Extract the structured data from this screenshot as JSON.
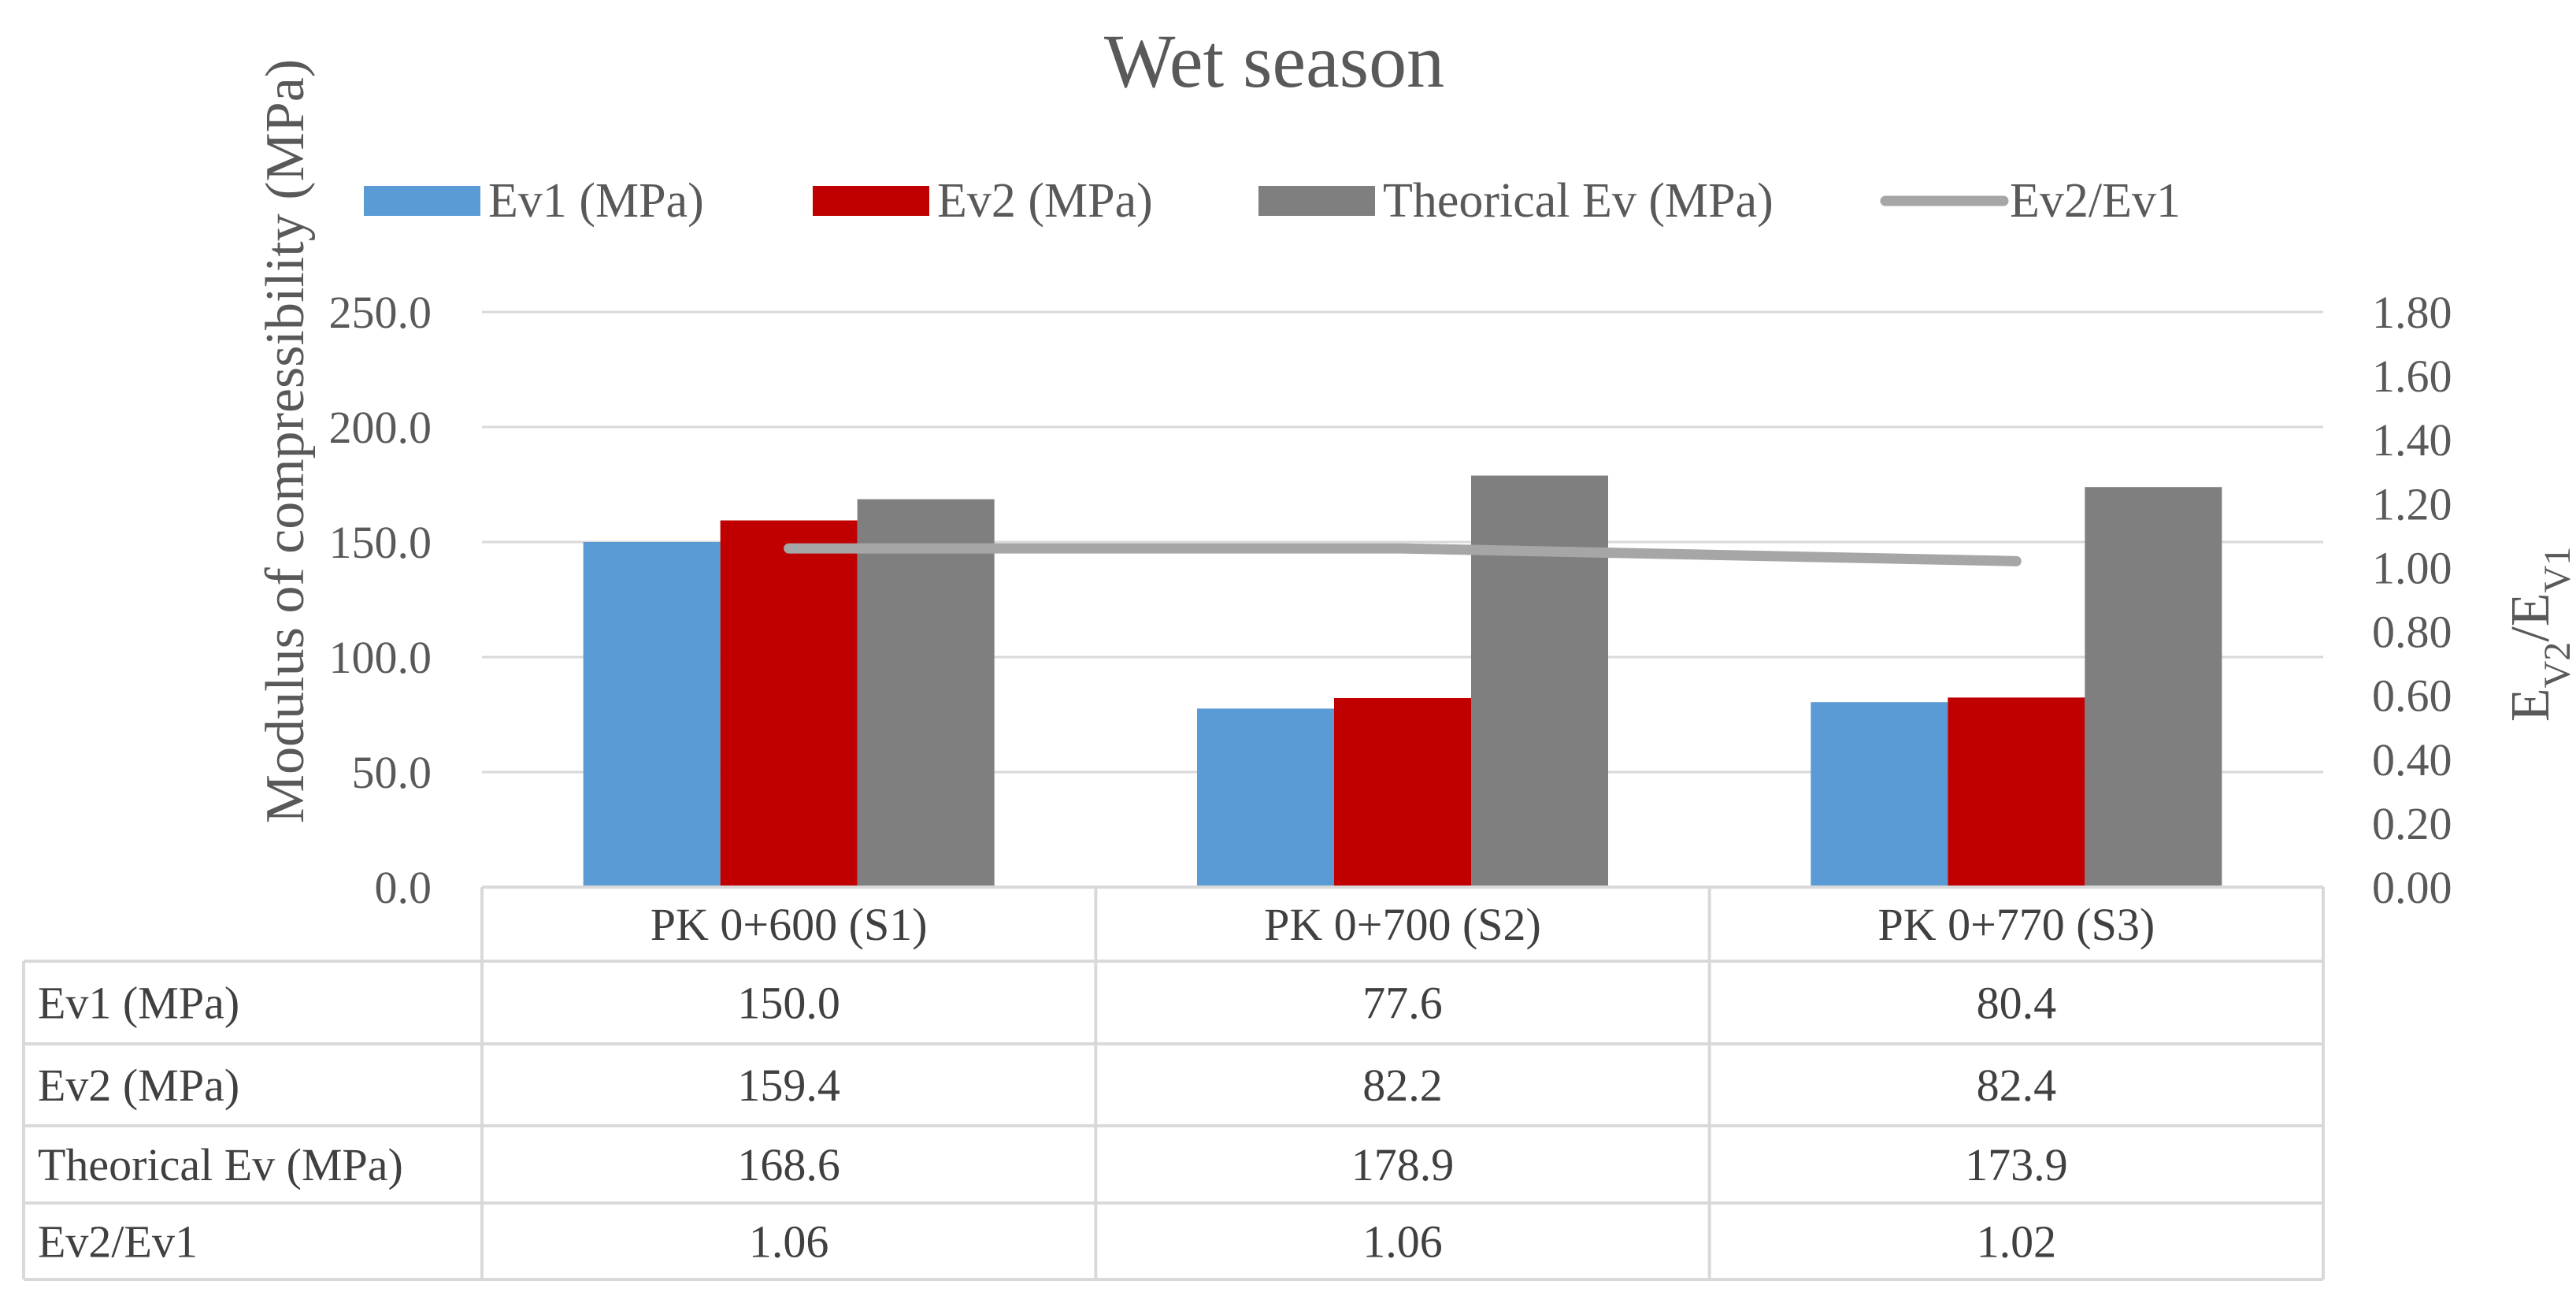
{
  "chart_data": {
    "type": "bar",
    "title": "Wet season",
    "categories": [
      "PK 0+600 (S1)",
      "PK 0+700 (S2)",
      "PK 0+770 (S3)"
    ],
    "series": [
      {
        "name": "Ev1 (MPa)",
        "type": "bar",
        "axis": "left",
        "color": "#5b9bd5",
        "values": [
          150.0,
          77.6,
          80.4
        ],
        "labels": [
          "150.0",
          "77.6",
          "80.4"
        ]
      },
      {
        "name": "Ev2 (MPa)",
        "type": "bar",
        "axis": "left",
        "color": "#c00000",
        "values": [
          159.4,
          82.2,
          82.4
        ],
        "labels": [
          "159.4",
          "82.2",
          "82.4"
        ]
      },
      {
        "name": "Theorical Ev (MPa)",
        "type": "bar",
        "axis": "left",
        "color": "#7f7f7f",
        "values": [
          168.6,
          178.9,
          173.9
        ],
        "labels": [
          "168.6",
          "178.9",
          "173.9"
        ]
      },
      {
        "name": "Ev2/Ev1",
        "type": "line",
        "axis": "right",
        "color": "#a6a6a6",
        "values": [
          1.06,
          1.06,
          1.02
        ],
        "labels": [
          "1.06",
          "1.06",
          "1.02"
        ]
      }
    ],
    "ylabel": "Modulus of compressibility (MPa)",
    "y2label": {
      "main": "E",
      "sub1": "V2",
      "sep": "/E",
      "sub2": "V1"
    },
    "ylim": [
      0,
      250
    ],
    "y2lim": [
      0,
      1.8
    ],
    "yticks": [
      "0.0",
      "50.0",
      "100.0",
      "150.0",
      "200.0",
      "250.0"
    ],
    "y2ticks": [
      "0.00",
      "0.20",
      "0.40",
      "0.60",
      "0.80",
      "1.00",
      "1.20",
      "1.40",
      "1.60",
      "1.80"
    ],
    "legend_position": "top",
    "data_table": true
  }
}
